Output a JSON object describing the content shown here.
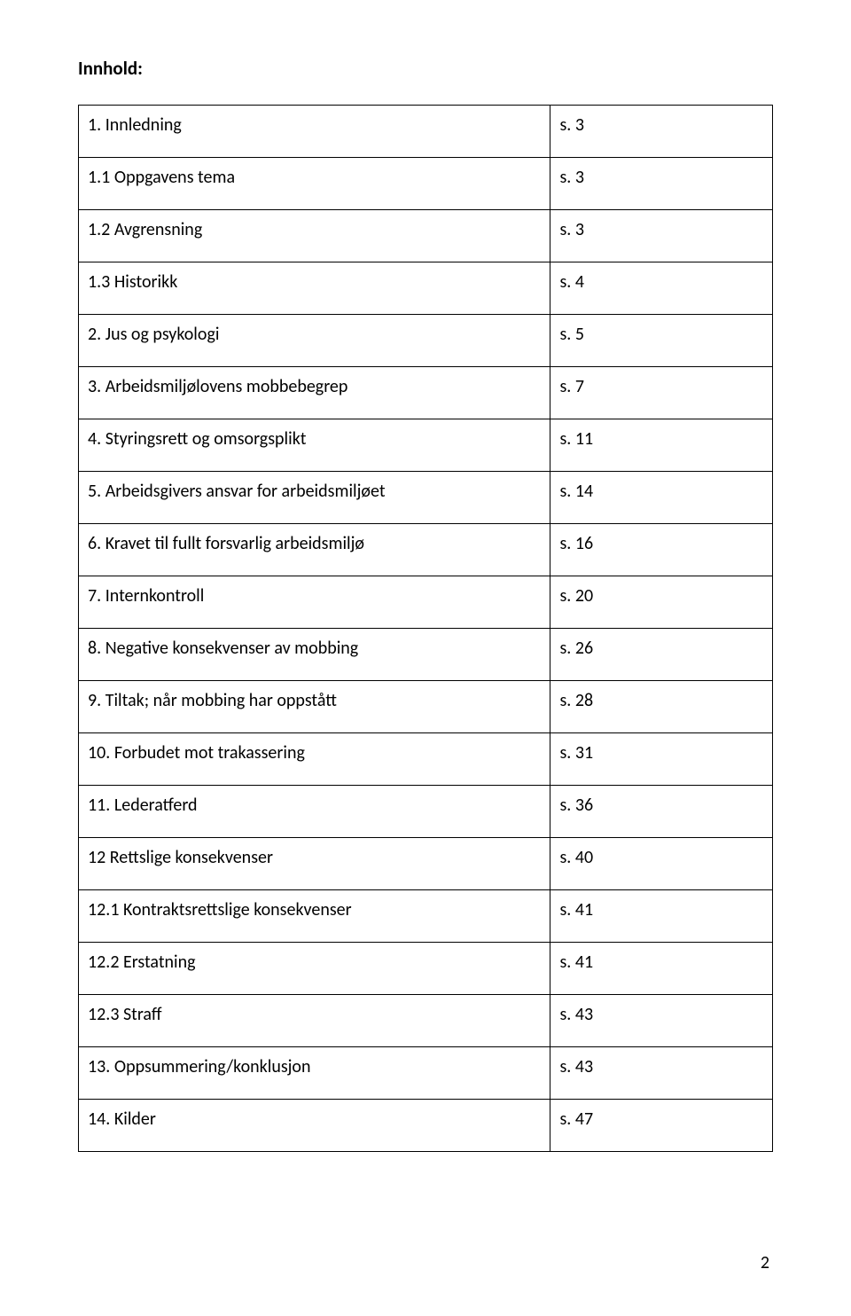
{
  "heading": "Innhold:",
  "rows": [
    {
      "label": "1. Innledning",
      "page": "s. 3"
    },
    {
      "label": "1.1 Oppgavens tema",
      "page": "s. 3"
    },
    {
      "label": "1.2 Avgrensning",
      "page": "s. 3"
    },
    {
      "label": "1.3 Historikk",
      "page": "s. 4"
    },
    {
      "label": "2. Jus og psykologi",
      "page": "s. 5"
    },
    {
      "label": "3. Arbeidsmiljølovens mobbebegrep",
      "page": "s. 7"
    },
    {
      "label": "4. Styringsrett og omsorgsplikt",
      "page": "s. 11"
    },
    {
      "label": "5. Arbeidsgivers ansvar for arbeidsmiljøet",
      "page": "s. 14"
    },
    {
      "label": "6. Kravet til fullt forsvarlig arbeidsmiljø",
      "page": "s. 16"
    },
    {
      "label": "7. Internkontroll",
      "page": "s. 20"
    },
    {
      "label": "8. Negative konsekvenser av mobbing",
      "page": "s. 26"
    },
    {
      "label": "9. Tiltak; når mobbing har oppstått",
      "page": "s. 28"
    },
    {
      "label": "10. Forbudet mot trakassering",
      "page": "s. 31"
    },
    {
      "label": " 11. Lederatferd",
      "page": "s. 36"
    },
    {
      "label": "12 Rettslige konsekvenser",
      "page": "s. 40"
    },
    {
      "label": "12.1 Kontraktsrettslige konsekvenser",
      "page": "s. 41"
    },
    {
      "label": "12.2 Erstatning",
      "page": "s. 41"
    },
    {
      "label": "12.3 Straff",
      "page": "s. 43"
    },
    {
      "label": "13. Oppsummering/konklusjon",
      "page": "s. 43"
    },
    {
      "label": "14. Kilder",
      "page": "s. 47"
    }
  ],
  "page_number": "2"
}
